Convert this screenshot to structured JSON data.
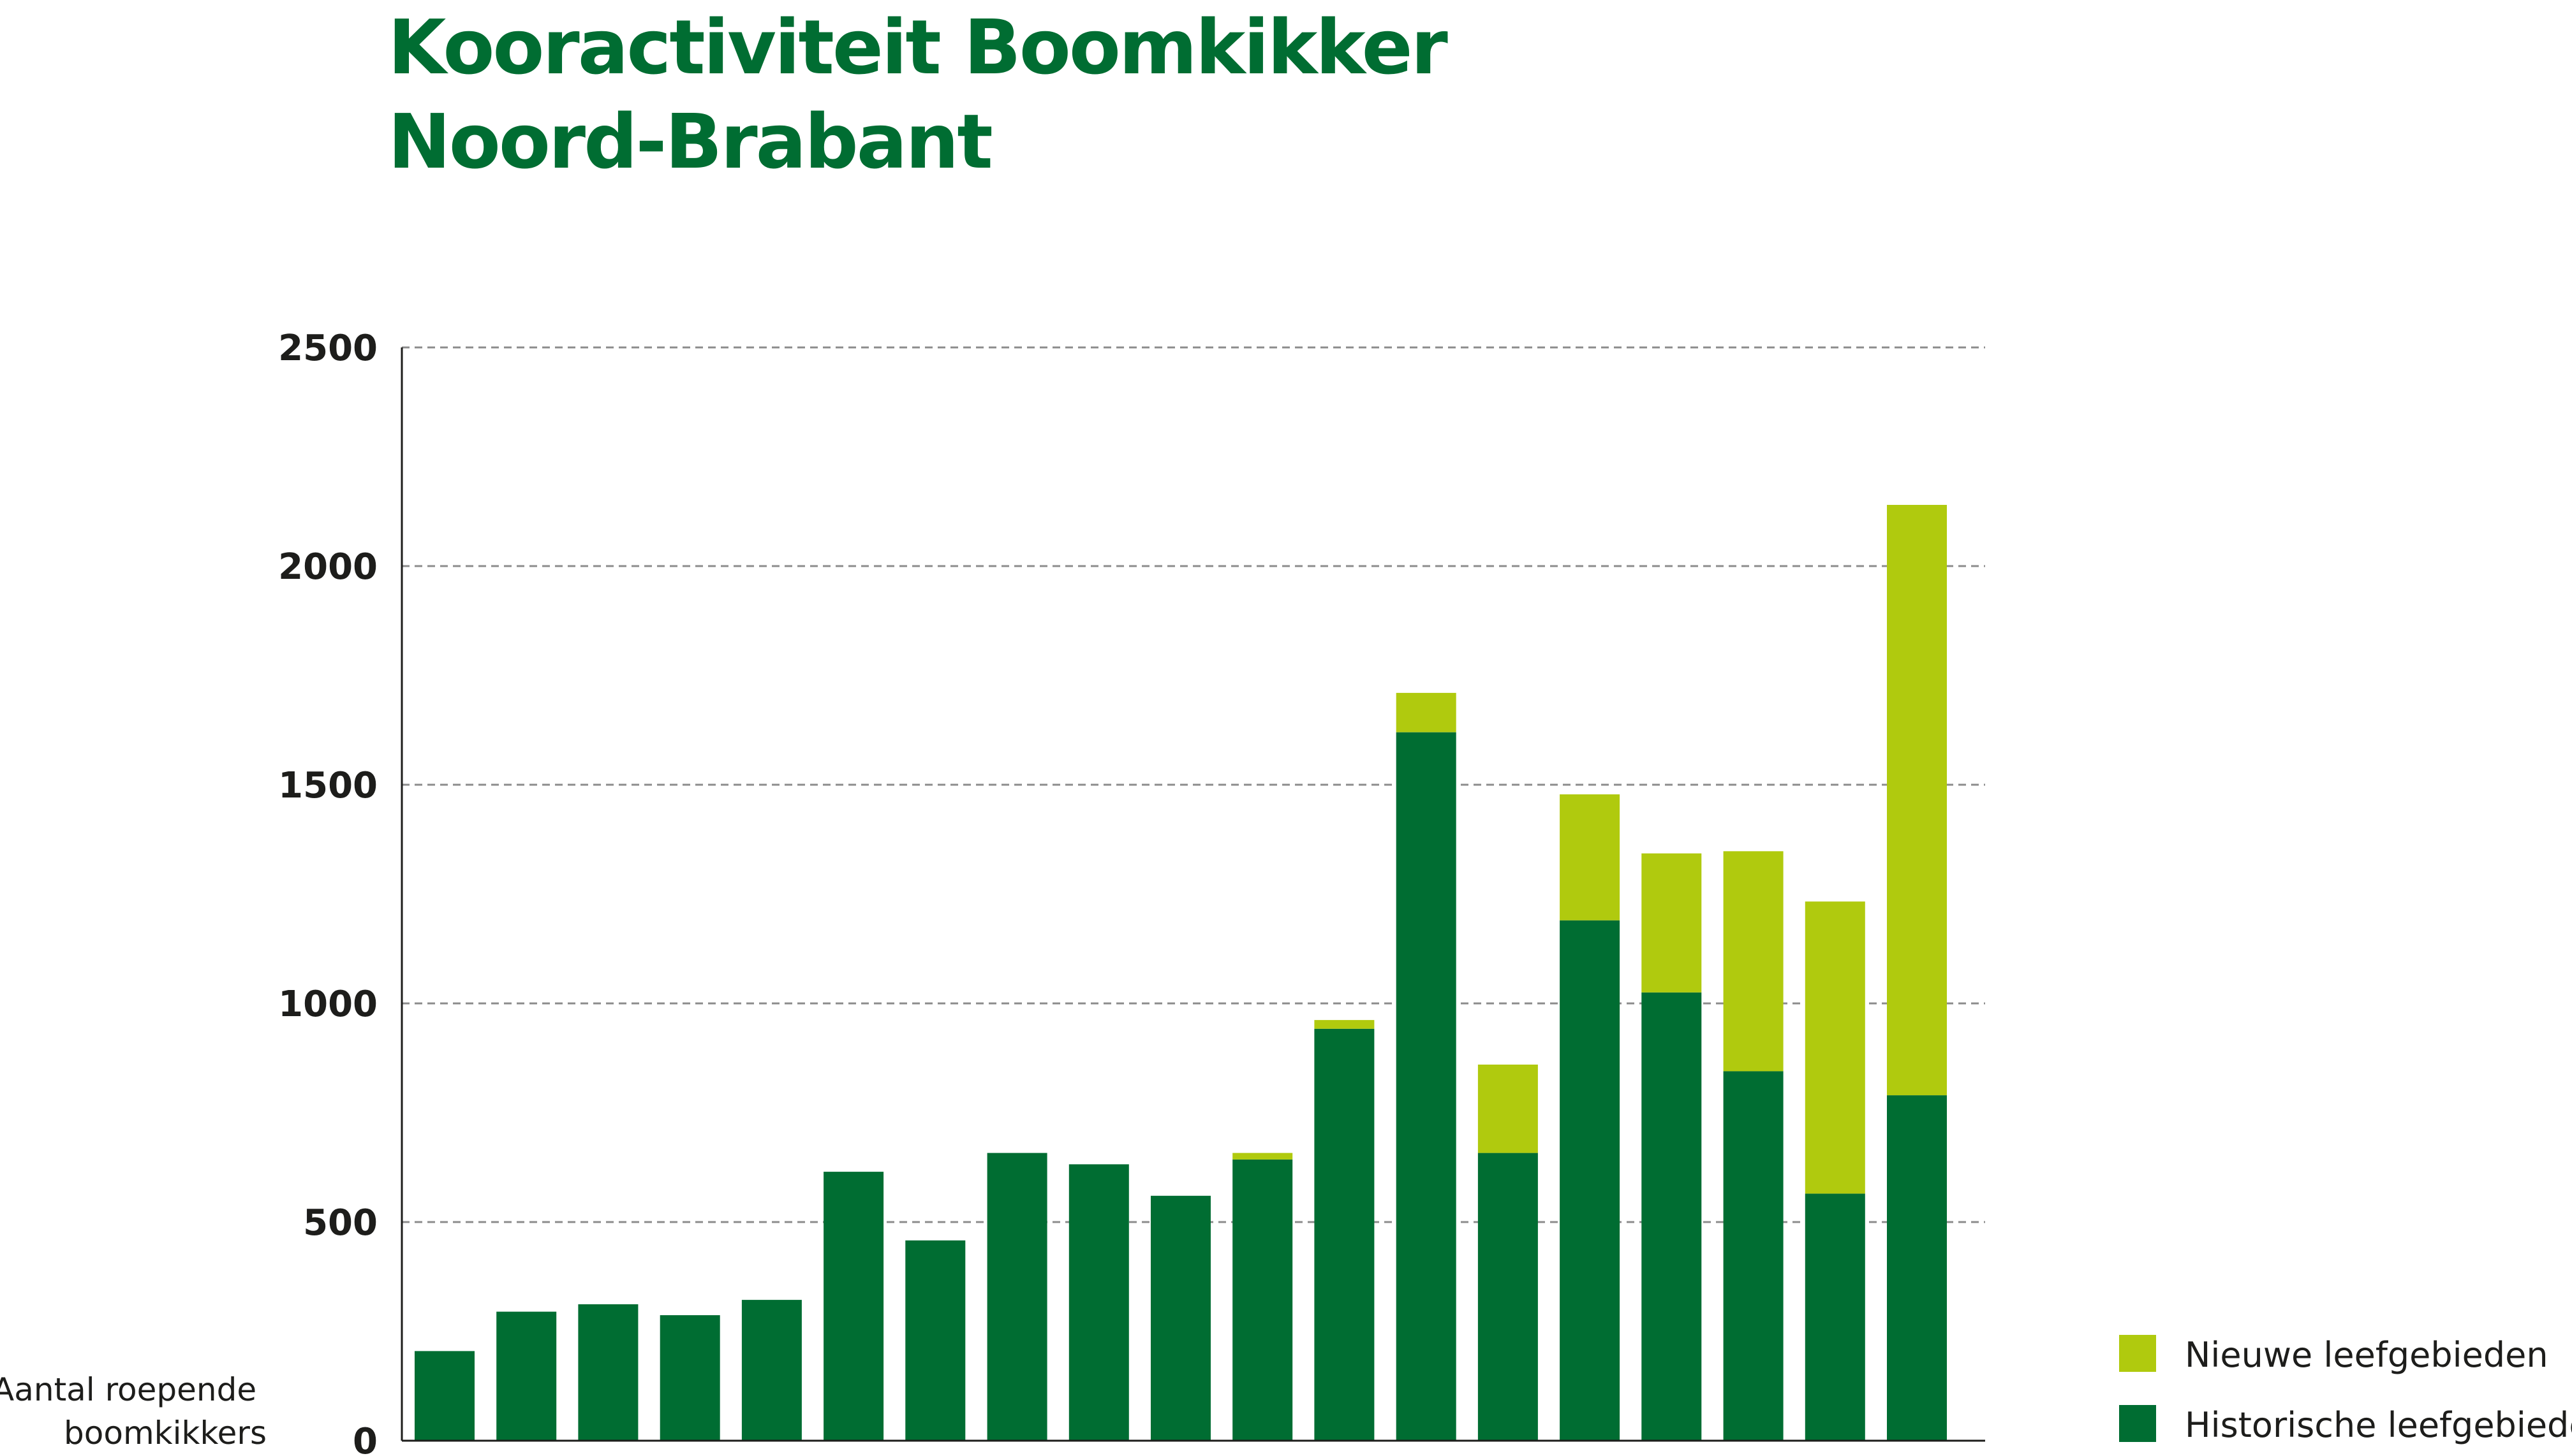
{
  "title_lines": [
    "Kooractiviteit Boomkikker",
    "Noord-Brabant"
  ],
  "colors": {
    "historisch": "#006d32",
    "nieuw": "#b0ca0e",
    "title": "#006d32",
    "text": "#1d1d1b",
    "grid": "#8c8c8c"
  },
  "chart_data": {
    "type": "bar",
    "stacked": true,
    "title": "Kooractiviteit Boomkikker Noord-Brabant",
    "ylabel": "Aantal roepende boomkikkers",
    "ylabel_lines": [
      "Aantal roepende",
      "boomkikkers"
    ],
    "xlabel": "",
    "ylim": [
      0,
      2500
    ],
    "yticks": [
      0,
      500,
      1000,
      1500,
      2000,
      2500
    ],
    "grid": true,
    "legend_position": "bottom-right",
    "categories": [
      "",
      "",
      "",
      "",
      "",
      "",
      "",
      "",
      "",
      "",
      "",
      "",
      "",
      "",
      "",
      "",
      "",
      "",
      ""
    ],
    "series": [
      {
        "name": "Historische leefgebieden",
        "color": "#006d32",
        "values": [
          205,
          295,
          312,
          287,
          322,
          615,
          458,
          658,
          632,
          560,
          643,
          942,
          1620,
          658,
          1190,
          1025,
          845,
          565,
          790
        ]
      },
      {
        "name": "Nieuwe leefgebieden",
        "color": "#b0ca0e",
        "values": [
          0,
          0,
          0,
          0,
          0,
          0,
          0,
          0,
          0,
          0,
          15,
          20,
          90,
          202,
          288,
          318,
          503,
          668,
          1350
        ]
      }
    ],
    "legend": [
      {
        "label": "Nieuwe leefgebieden",
        "color": "#b0ca0e"
      },
      {
        "label": "Historische leefgebieden",
        "color": "#006d32"
      }
    ]
  }
}
